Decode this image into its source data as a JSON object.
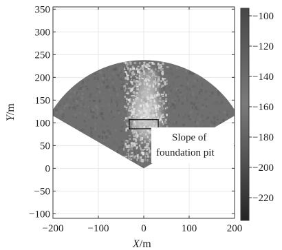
{
  "chart_data": {
    "type": "heatmap",
    "description_type": "radar-sector-map",
    "xlabel": "X/m",
    "xlabel_italic": "X",
    "xlabel_unit": "/m",
    "ylabel": "Y/m",
    "ylabel_italic": "Y",
    "ylabel_unit": "/m",
    "xlim": [
      -200,
      200
    ],
    "ylim": [
      -110,
      355
    ],
    "xticks": [
      -200,
      -100,
      0,
      100,
      200
    ],
    "yticks": [
      -100,
      -50,
      0,
      50,
      100,
      150,
      200,
      250,
      300,
      350
    ],
    "grid": true,
    "sector": {
      "apex": [
        0,
        0
      ],
      "radius": 238,
      "angle_from_deg": 30,
      "angle_to_deg": 150
    },
    "colorbar": {
      "min": -235,
      "max": -95,
      "ticks": [
        -100,
        -120,
        -140,
        -160,
        -180,
        -200,
        -220
      ],
      "colormap": "gray"
    },
    "highlight_box": {
      "x": [
        -32,
        32
      ],
      "y": [
        87,
        107
      ]
    },
    "annotation": {
      "line1": "Slope of",
      "line2": "foundation pit"
    },
    "colors": {
      "background_sector": "#6f6f6f",
      "bright_area": "#d9d9d9",
      "grid": "#e8e8e8",
      "axis": "#333333"
    }
  }
}
